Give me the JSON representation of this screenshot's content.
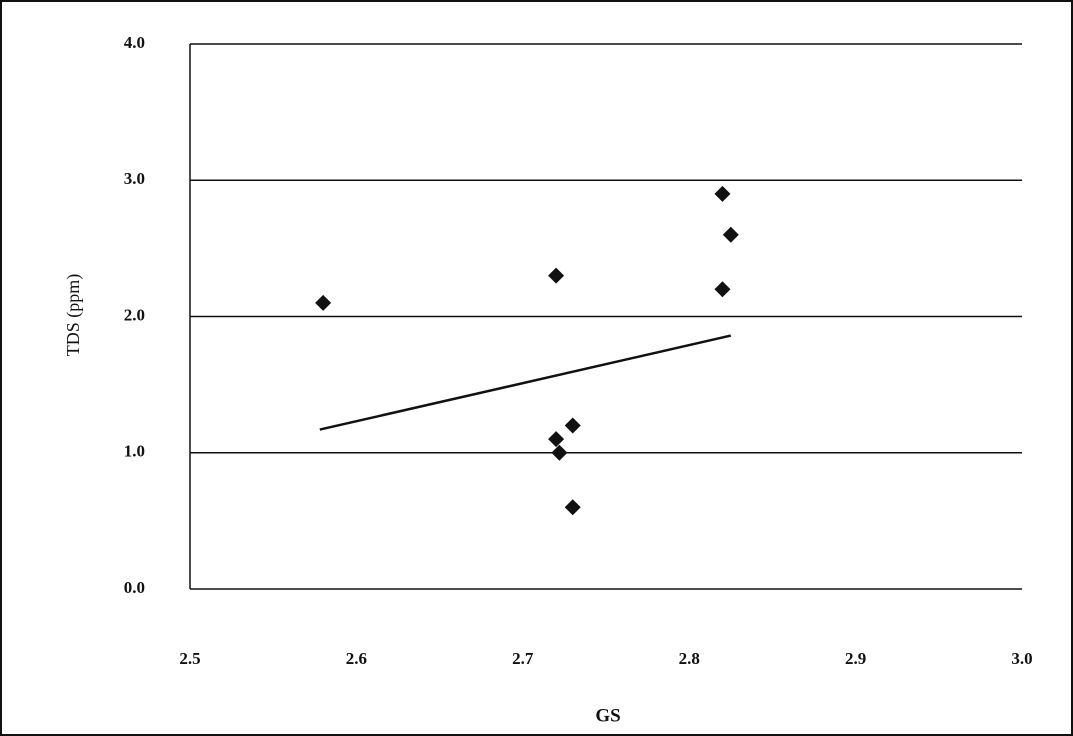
{
  "chart_data": {
    "type": "scatter",
    "xlabel": "GS",
    "ylabel": "TDS (ppm)",
    "series": [
      {
        "color": "#111111",
        "x": [
          2.58,
          2.72,
          2.82,
          2.825,
          2.82,
          2.73,
          2.72,
          2.722,
          2.73
        ],
        "values": [
          2.1,
          2.3,
          2.9,
          2.6,
          2.2,
          1.2,
          1.1,
          1.0,
          0.6
        ]
      }
    ],
    "trendline": {
      "color": "#111111",
      "x": [
        2.578,
        2.825
      ],
      "values": [
        1.17,
        1.86
      ]
    },
    "xlim": [
      2.5,
      3.0
    ],
    "xticks": [
      2.5,
      2.6,
      2.7,
      2.8,
      2.9,
      {
        "value": 3,
        "label": "3.0"
      }
    ],
    "ylim": [
      0,
      4
    ],
    "yticks": [
      {
        "value": 0,
        "label": "0.0"
      },
      {
        "value": 1,
        "label": "1.0"
      },
      {
        "value": 2,
        "label": "2.0"
      },
      {
        "value": 3,
        "label": "3.0"
      },
      {
        "value": 4,
        "label": "4.0"
      }
    ],
    "grid": true
  }
}
